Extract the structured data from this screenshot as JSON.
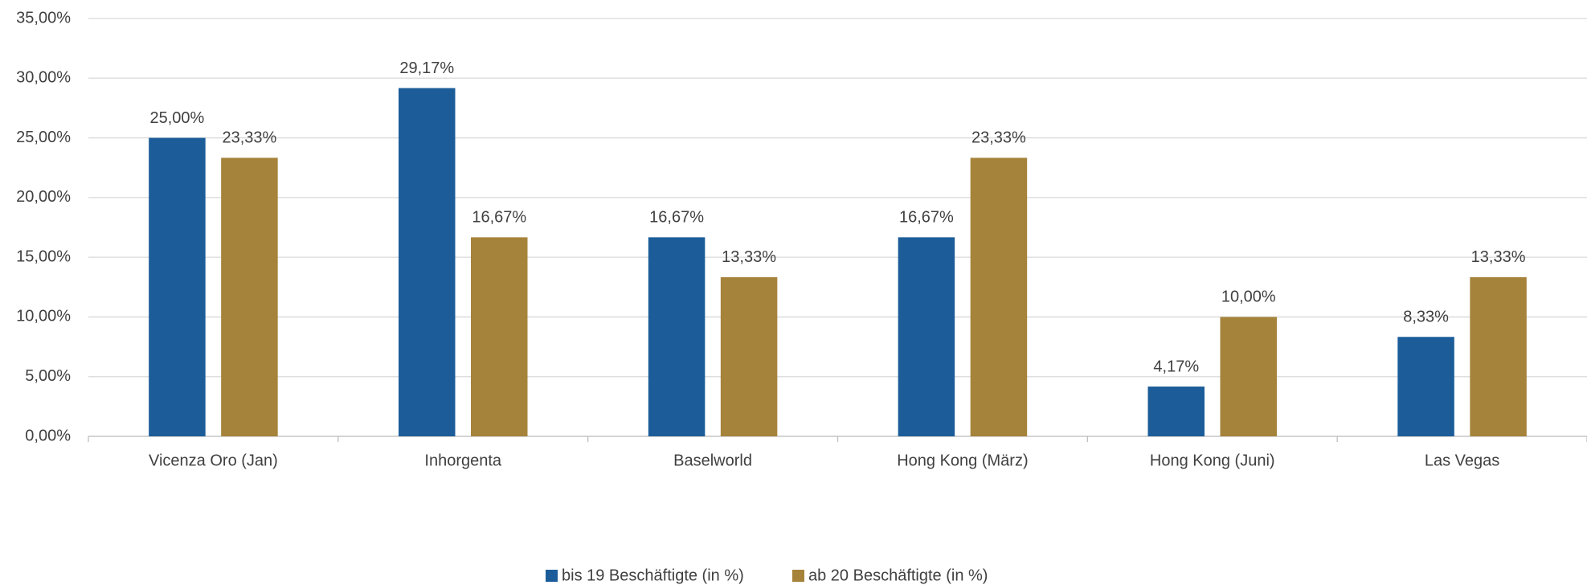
{
  "chart_data": {
    "type": "bar",
    "categories": [
      "Vicenza Oro (Jan)",
      "Inhorgenta",
      "Baselworld",
      "Hong Kong (März)",
      "Hong Kong (Juni)",
      "Las Vegas"
    ],
    "series": [
      {
        "name": "bis 19 Beschäftigte (in %)",
        "color": "#1c5d99",
        "values": [
          25.0,
          29.17,
          16.67,
          16.67,
          4.17,
          8.33
        ],
        "value_labels": [
          "25,00%",
          "29,17%",
          "16,67%",
          "16,67%",
          "4,17%",
          "8,33%"
        ]
      },
      {
        "name": "ab 20 Beschäftigte (in %)",
        "color": "#a6833a",
        "values": [
          23.33,
          16.67,
          13.33,
          23.33,
          10.0,
          13.33
        ],
        "value_labels": [
          "23,33%",
          "16,67%",
          "13,33%",
          "23,33%",
          "10,00%",
          "13,33%"
        ]
      }
    ],
    "ylim": [
      0,
      35
    ],
    "yticks": [
      {
        "value": 0,
        "label": "0,00%"
      },
      {
        "value": 5,
        "label": "5,00%"
      },
      {
        "value": 10,
        "label": "10,00%"
      },
      {
        "value": 15,
        "label": "15,00%"
      },
      {
        "value": 20,
        "label": "20,00%"
      },
      {
        "value": 25,
        "label": "25,00%"
      },
      {
        "value": 30,
        "label": "30,00%"
      },
      {
        "value": 35,
        "label": "35,00%"
      }
    ],
    "grid": true
  }
}
